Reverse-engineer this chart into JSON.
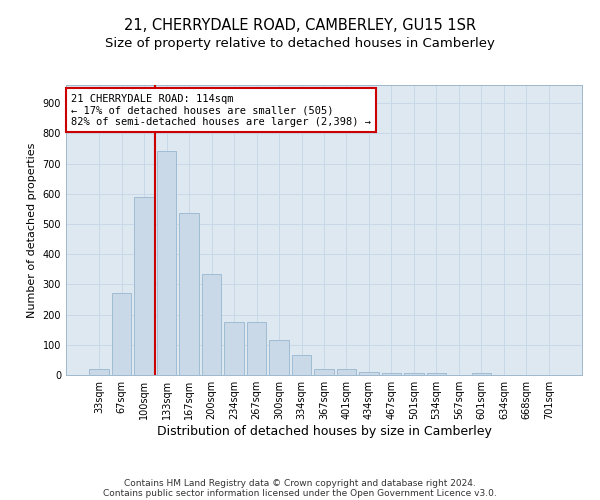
{
  "title": "21, CHERRYDALE ROAD, CAMBERLEY, GU15 1SR",
  "subtitle": "Size of property relative to detached houses in Camberley",
  "xlabel": "Distribution of detached houses by size in Camberley",
  "ylabel": "Number of detached properties",
  "bar_labels": [
    "33sqm",
    "67sqm",
    "100sqm",
    "133sqm",
    "167sqm",
    "200sqm",
    "234sqm",
    "267sqm",
    "300sqm",
    "334sqm",
    "367sqm",
    "401sqm",
    "434sqm",
    "467sqm",
    "501sqm",
    "534sqm",
    "567sqm",
    "601sqm",
    "634sqm",
    "668sqm",
    "701sqm"
  ],
  "bar_values": [
    20,
    270,
    590,
    740,
    535,
    335,
    175,
    175,
    115,
    67,
    20,
    20,
    10,
    8,
    6,
    5,
    0,
    7,
    0,
    0,
    0
  ],
  "bar_color": "#c9d9e8",
  "bar_edge_color": "#a0bcd4",
  "property_line_x": 2.5,
  "annotation_text": "21 CHERRYDALE ROAD: 114sqm\n← 17% of detached houses are smaller (505)\n82% of semi-detached houses are larger (2,398) →",
  "annotation_box_color": "#ffffff",
  "annotation_box_edge": "#cc0000",
  "vline_color": "#cc0000",
  "ylim": [
    0,
    960
  ],
  "yticks": [
    0,
    100,
    200,
    300,
    400,
    500,
    600,
    700,
    800,
    900
  ],
  "grid_color": "#c8d8e8",
  "background_color": "#dde8f0",
  "footer_line1": "Contains HM Land Registry data © Crown copyright and database right 2024.",
  "footer_line2": "Contains public sector information licensed under the Open Government Licence v3.0.",
  "title_fontsize": 10.5,
  "subtitle_fontsize": 9.5,
  "xlabel_fontsize": 9,
  "ylabel_fontsize": 8,
  "tick_fontsize": 7,
  "annotation_fontsize": 7.5,
  "footer_fontsize": 6.5
}
